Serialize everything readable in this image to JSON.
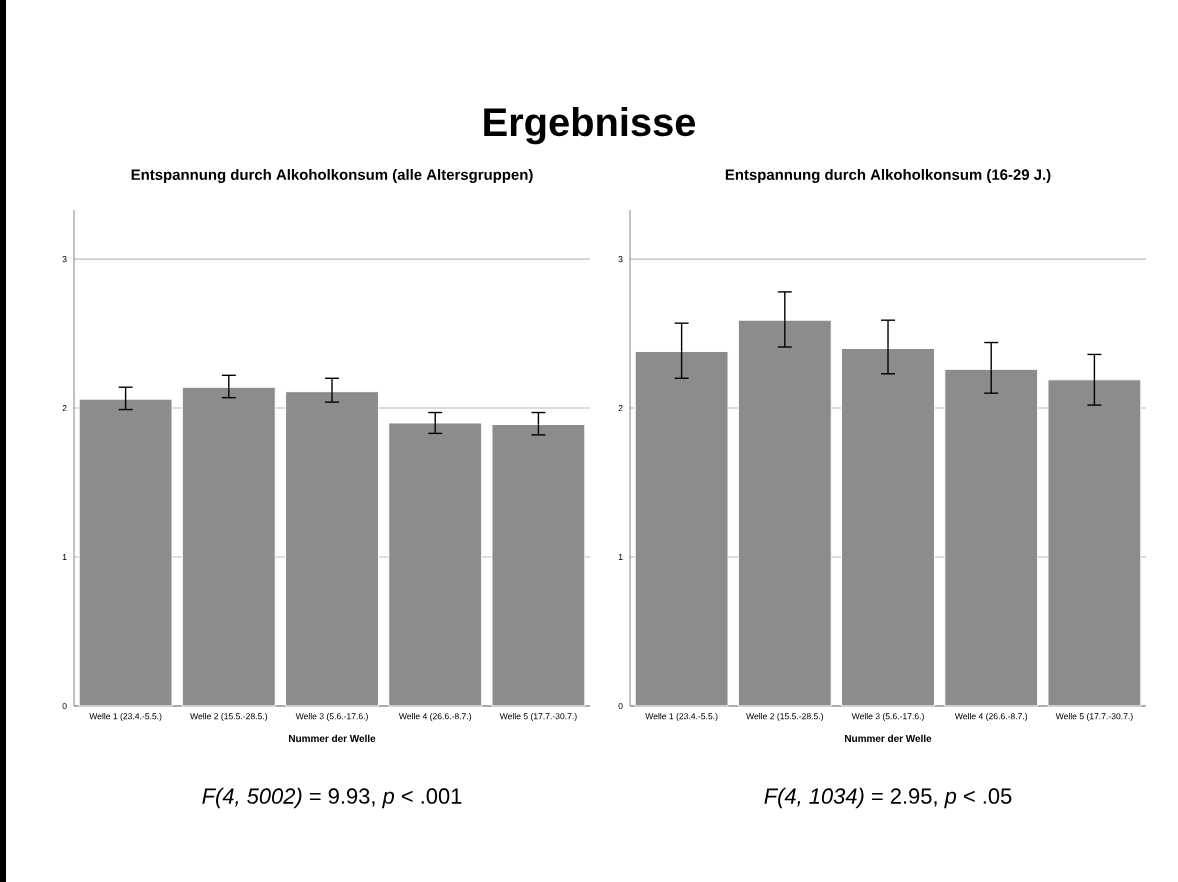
{
  "chart_data": [
    {
      "type": "other",
      "title": "Ergebnisse"
    },
    {
      "type": "bar",
      "title": "Entspannung durch Alkoholkonsum (alle Altersgruppen)",
      "xlabel": "Nummer der Welle",
      "categories": [
        "Welle 1 (23.4.-5.5.)",
        "Welle 2 (15.5.-28.5.)",
        "Welle 3 (5.6.-17.6.)",
        "Welle 4 (26.6.-8.7.)",
        "Welle 5 (17.7.-30.7.)"
      ],
      "values": [
        2.06,
        2.14,
        2.11,
        1.9,
        1.89
      ],
      "errors": [
        [
          1.99,
          2.14
        ],
        [
          2.07,
          2.22
        ],
        [
          2.04,
          2.2
        ],
        [
          1.83,
          1.97
        ],
        [
          1.82,
          1.97
        ]
      ],
      "color": "#8c8c8c",
      "ylim": [
        0,
        3.33
      ],
      "yticks": [
        0,
        1,
        2,
        3
      ],
      "grid": "y",
      "annotations": [
        "*F(4, 5002)* = 9.93, *p* < .001"
      ]
    },
    {
      "type": "bar",
      "title": "Entspannung durch Alkoholkonsum (16-29 J.)",
      "xlabel": "Nummer der Welle",
      "categories": [
        "Welle 1 (23.4.-5.5.)",
        "Welle 2 (15.5.-28.5.)",
        "Welle 3 (5.6.-17.6.)",
        "Welle 4 (26.6.-8.7.)",
        "Welle 5 (17.7.-30.7.)"
      ],
      "values": [
        2.38,
        2.59,
        2.4,
        2.26,
        2.19
      ],
      "errors": [
        [
          2.2,
          2.57
        ],
        [
          2.41,
          2.78
        ],
        [
          2.23,
          2.59
        ],
        [
          2.1,
          2.44
        ],
        [
          2.02,
          2.36
        ]
      ],
      "color": "#8c8c8c",
      "ylim": [
        0,
        3.33
      ],
      "yticks": [
        0,
        1,
        2,
        3
      ],
      "grid": "y",
      "annotations": [
        "*F(4, 1034)* = 2.95, *p* < .05"
      ]
    }
  ]
}
